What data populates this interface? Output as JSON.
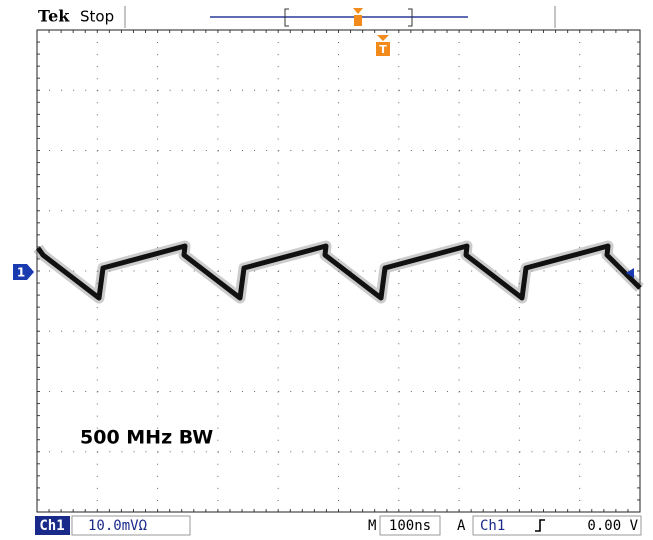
{
  "header": {
    "brand": "Tek",
    "status": "Stop"
  },
  "annotation": "500 MHz BW",
  "markers": {
    "channel": "1",
    "trigger": "T"
  },
  "footer": {
    "channel": "Ch1",
    "scale": "10.0mVΩ",
    "timebase_label": "M",
    "timebase": "100ns",
    "trigger_mode": "A",
    "trigger_source": "Ch1",
    "trigger_level": "0.00 V"
  }
}
